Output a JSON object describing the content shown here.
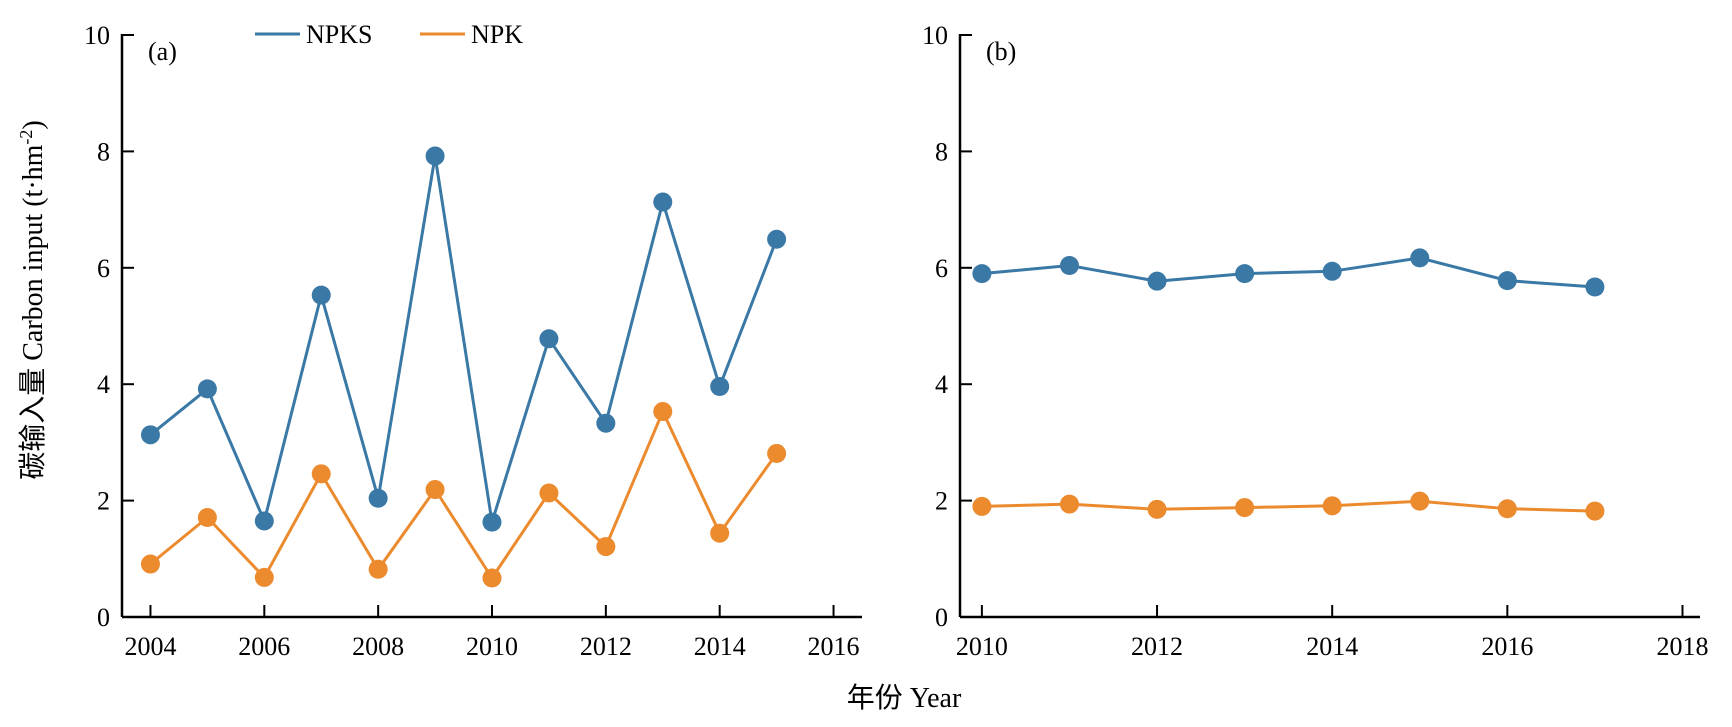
{
  "colors": {
    "NPKS": "#3a78a6",
    "NPK": "#ec8a2e"
  },
  "legend": [
    {
      "name": "NPKS"
    },
    {
      "name": "NPK"
    }
  ],
  "ylabel": "碳输入量 Carbon input (t·hm-2)",
  "ylabel_parts": {
    "main": "碳输入量 Carbon input (t·hm",
    "sup": "-2",
    "close": ")"
  },
  "xlabel": "年份 Year",
  "chart_data": [
    {
      "type": "line",
      "panel": "(a)",
      "xlim": [
        2003.5,
        2016.5
      ],
      "ylim": [
        0,
        10
      ],
      "xticks": [
        2004,
        2006,
        2008,
        2010,
        2012,
        2014,
        2016
      ],
      "yticks": [
        0,
        2,
        4,
        6,
        8,
        10
      ],
      "x": [
        2004,
        2005,
        2006,
        2007,
        2008,
        2009,
        2010,
        2011,
        2012,
        2013,
        2014,
        2015
      ],
      "series": [
        {
          "name": "NPKS",
          "values": [
            3.13,
            3.92,
            1.65,
            5.53,
            2.04,
            7.92,
            1.63,
            4.78,
            3.33,
            7.13,
            3.96,
            6.49
          ]
        },
        {
          "name": "NPK",
          "values": [
            0.91,
            1.71,
            0.68,
            2.46,
            0.82,
            2.19,
            0.67,
            2.13,
            1.21,
            3.53,
            1.44,
            2.81
          ]
        }
      ]
    },
    {
      "type": "line",
      "panel": "(b)",
      "xlim": [
        2009.75,
        2018.2
      ],
      "ylim": [
        0,
        10
      ],
      "xticks": [
        2010,
        2012,
        2014,
        2016,
        2018
      ],
      "yticks": [
        0,
        2,
        4,
        6,
        8,
        10
      ],
      "x": [
        2010,
        2011,
        2012,
        2013,
        2014,
        2015,
        2016,
        2017
      ],
      "series": [
        {
          "name": "NPKS",
          "values": [
            5.9,
            6.04,
            5.77,
            5.9,
            5.94,
            6.17,
            5.78,
            5.67
          ]
        },
        {
          "name": "NPK",
          "values": [
            1.9,
            1.94,
            1.85,
            1.88,
            1.91,
            1.99,
            1.86,
            1.82
          ]
        }
      ]
    }
  ]
}
